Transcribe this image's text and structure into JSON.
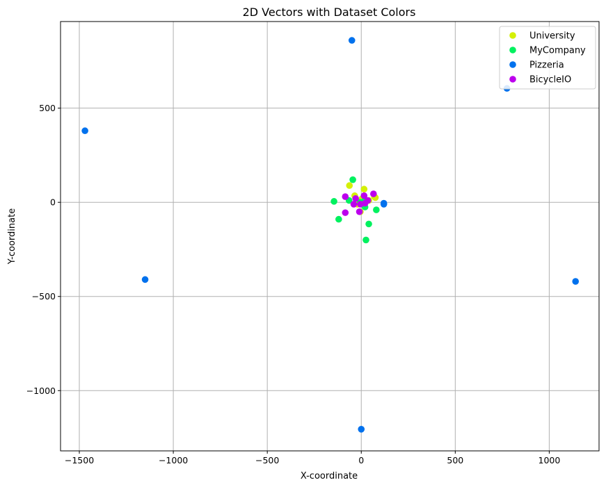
{
  "chart_data": {
    "type": "scatter",
    "title": "2D Vectors with Dataset Colors",
    "xlabel": "X-coordinate",
    "ylabel": "Y-coordinate",
    "xlim": [
      -1600,
      1265
    ],
    "ylim": [
      -1320,
      960
    ],
    "xticks": [
      -1500,
      -1000,
      -500,
      0,
      500,
      1000
    ],
    "xtick_labels": [
      "−1500",
      "−1000",
      "−500",
      "0",
      "500",
      "1000"
    ],
    "yticks": [
      500,
      0,
      -500,
      -1000
    ],
    "ytick_labels": [
      "500",
      "0",
      "−500",
      "−1000"
    ],
    "grid": true,
    "legend_position": "top-right",
    "series": [
      {
        "name": "University",
        "color": "#d4f006",
        "points": [
          [
            -63,
            89
          ],
          [
            -35,
            35
          ],
          [
            15,
            70
          ],
          [
            70,
            30
          ],
          [
            75,
            25
          ],
          [
            -5,
            -50
          ],
          [
            -20,
            -10
          ],
          [
            40,
            10
          ],
          [
            5,
            20
          ]
        ]
      },
      {
        "name": "MyCompany",
        "color": "#00f15f",
        "points": [
          [
            -45,
            120
          ],
          [
            -145,
            5
          ],
          [
            -65,
            10
          ],
          [
            -120,
            -90
          ],
          [
            20,
            -25
          ],
          [
            80,
            -40
          ],
          [
            40,
            -115
          ],
          [
            25,
            -200
          ],
          [
            15,
            5
          ],
          [
            -5,
            0
          ]
        ]
      },
      {
        "name": "Pizzeria",
        "color": "#0071ed",
        "points": [
          [
            -50,
            860
          ],
          [
            775,
            605
          ],
          [
            -1470,
            380
          ],
          [
            -1150,
            -410
          ],
          [
            1140,
            -420
          ],
          [
            0,
            -1205
          ],
          [
            120,
            -5
          ],
          [
            120,
            -10
          ]
        ]
      },
      {
        "name": "BicycleIO",
        "color": "#bc00ed",
        "points": [
          [
            -85,
            30
          ],
          [
            -85,
            -55
          ],
          [
            -40,
            -10
          ],
          [
            -30,
            20
          ],
          [
            -10,
            -50
          ],
          [
            -5,
            -10
          ],
          [
            15,
            35
          ],
          [
            35,
            10
          ],
          [
            65,
            45
          ],
          [
            20,
            -5
          ]
        ]
      }
    ]
  }
}
